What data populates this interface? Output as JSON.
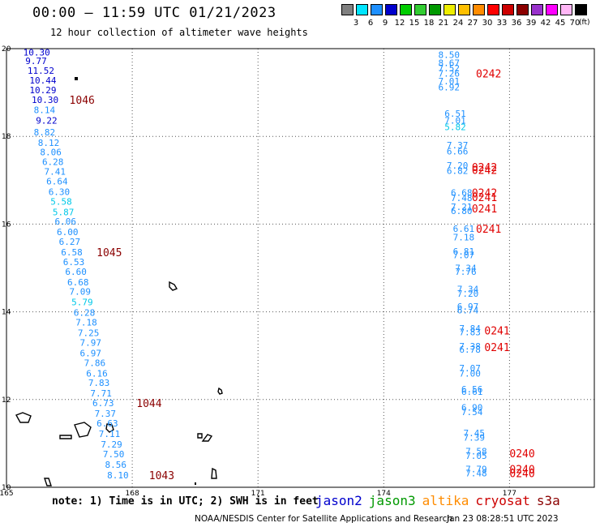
{
  "title": "00:00 – 11:59 UTC 01/21/2023",
  "subtitle": "12 hour collection of altimeter wave heights",
  "legend": {
    "unit": "(ft)",
    "bins": [
      {
        "label": "3",
        "color": "#808080"
      },
      {
        "label": "6",
        "color": "#00e5ff"
      },
      {
        "label": "9",
        "color": "#1e90ff"
      },
      {
        "label": "12",
        "color": "#0000cd"
      },
      {
        "label": "15",
        "color": "#00cd00"
      },
      {
        "label": "18",
        "color": "#32cd32"
      },
      {
        "label": "21",
        "color": "#009900"
      },
      {
        "label": "24",
        "color": "#eeee00"
      },
      {
        "label": "27",
        "color": "#ffc000"
      },
      {
        "label": "30",
        "color": "#ff8c00"
      },
      {
        "label": "33",
        "color": "#ff0000"
      },
      {
        "label": "36",
        "color": "#cc0000"
      },
      {
        "label": "39",
        "color": "#8b0000"
      },
      {
        "label": "42",
        "color": "#9932cc"
      },
      {
        "label": "45",
        "color": "#ff00ff"
      },
      {
        "label": "70",
        "color": "#ffb6f5"
      },
      {
        "label": "",
        "color": "#000000"
      }
    ]
  },
  "note": "note: 1) Time is in UTC; 2) SWH is in feet",
  "satellites": [
    {
      "name": "jason2",
      "color": "#0000cd"
    },
    {
      "name": "jason3",
      "color": "#009900"
    },
    {
      "name": "altika",
      "color": "#ff8c00"
    },
    {
      "name": "cryosat",
      "color": "#cc0000"
    },
    {
      "name": "s3a",
      "color": "#8b0000"
    }
  ],
  "credit": "NOAA/NESDIS Center for Satellite Applications and Research",
  "timestamp": "Jan 23 08:28:51 UTC 2023",
  "chart_data": {
    "type": "scatter",
    "title": "00:00 – 11:59 UTC 01/21/2023",
    "xlim": [
      165,
      178
    ],
    "ylim": [
      10,
      20
    ],
    "x_ticks": [
      "165",
      "168",
      "171",
      "174",
      "177"
    ],
    "y_ticks": [
      "10",
      "12",
      "14",
      "16",
      "18",
      "20"
    ],
    "grid": true,
    "series": [
      {
        "name": "track-west",
        "points": [
          {
            "x": 165.4,
            "y": 19.92,
            "v": "10.30",
            "color": "#0000cd"
          },
          {
            "x": 165.45,
            "y": 19.72,
            "v": "9.77",
            "color": "#0000cd"
          },
          {
            "x": 165.5,
            "y": 19.5,
            "v": "11.52",
            "color": "#0000cd"
          },
          {
            "x": 165.55,
            "y": 19.28,
            "v": "10.44",
            "color": "#0000cd"
          },
          {
            "x": 165.55,
            "y": 19.06,
            "v": "10.29",
            "color": "#0000cd"
          },
          {
            "x": 165.6,
            "y": 18.84,
            "v": "10.30",
            "color": "#0000cd"
          },
          {
            "x": 165.65,
            "y": 18.6,
            "v": "8.14",
            "color": "#1e90ff"
          },
          {
            "x": 165.7,
            "y": 18.36,
            "v": "9.22",
            "color": "#0000cd"
          },
          {
            "x": 165.65,
            "y": 18.1,
            "v": "8.82",
            "color": "#1e90ff"
          },
          {
            "x": 165.75,
            "y": 17.86,
            "v": "8.12",
            "color": "#1e90ff"
          },
          {
            "x": 165.8,
            "y": 17.64,
            "v": "8.06",
            "color": "#1e90ff"
          },
          {
            "x": 165.85,
            "y": 17.42,
            "v": "6.28",
            "color": "#1e90ff"
          },
          {
            "x": 165.9,
            "y": 17.2,
            "v": "7.41",
            "color": "#1e90ff"
          },
          {
            "x": 165.95,
            "y": 16.98,
            "v": "6.64",
            "color": "#1e90ff"
          },
          {
            "x": 166.0,
            "y": 16.74,
            "v": "6.30",
            "color": "#1e90ff"
          },
          {
            "x": 166.05,
            "y": 16.52,
            "v": "5.58",
            "color": "#00c8e8"
          },
          {
            "x": 166.1,
            "y": 16.28,
            "v": "5.87",
            "color": "#00c8e8"
          },
          {
            "x": 166.15,
            "y": 16.06,
            "v": "6.06",
            "color": "#1e90ff"
          },
          {
            "x": 166.2,
            "y": 15.82,
            "v": "6.00",
            "color": "#1e90ff"
          },
          {
            "x": 166.25,
            "y": 15.6,
            "v": "6.27",
            "color": "#1e90ff"
          },
          {
            "x": 166.3,
            "y": 15.36,
            "v": "6.58",
            "color": "#1e90ff"
          },
          {
            "x": 166.35,
            "y": 15.14,
            "v": "6.53",
            "color": "#1e90ff"
          },
          {
            "x": 166.4,
            "y": 14.92,
            "v": "6.60",
            "color": "#1e90ff"
          },
          {
            "x": 166.45,
            "y": 14.68,
            "v": "6.68",
            "color": "#1e90ff"
          },
          {
            "x": 166.5,
            "y": 14.46,
            "v": "7.09",
            "color": "#1e90ff"
          },
          {
            "x": 166.55,
            "y": 14.22,
            "v": "5.79",
            "color": "#00c8e8"
          },
          {
            "x": 166.6,
            "y": 13.98,
            "v": "6.28",
            "color": "#1e90ff"
          },
          {
            "x": 166.65,
            "y": 13.76,
            "v": "7.18",
            "color": "#1e90ff"
          },
          {
            "x": 166.7,
            "y": 13.52,
            "v": "7.25",
            "color": "#1e90ff"
          },
          {
            "x": 166.75,
            "y": 13.3,
            "v": "7.97",
            "color": "#1e90ff"
          },
          {
            "x": 166.75,
            "y": 13.06,
            "v": "6.97",
            "color": "#1e90ff"
          },
          {
            "x": 166.85,
            "y": 12.84,
            "v": "7.86",
            "color": "#1e90ff"
          },
          {
            "x": 166.9,
            "y": 12.6,
            "v": "6.16",
            "color": "#1e90ff"
          },
          {
            "x": 166.95,
            "y": 12.38,
            "v": "7.83",
            "color": "#1e90ff"
          },
          {
            "x": 167.0,
            "y": 12.14,
            "v": "7.71",
            "color": "#1e90ff"
          },
          {
            "x": 167.05,
            "y": 11.92,
            "v": "6.73",
            "color": "#1e90ff"
          },
          {
            "x": 167.1,
            "y": 11.68,
            "v": "7.37",
            "color": "#1e90ff"
          },
          {
            "x": 167.15,
            "y": 11.46,
            "v": "6.63",
            "color": "#1e90ff"
          },
          {
            "x": 167.2,
            "y": 11.22,
            "v": "7.11",
            "color": "#1e90ff"
          },
          {
            "x": 167.25,
            "y": 10.98,
            "v": "7.29",
            "color": "#1e90ff"
          },
          {
            "x": 167.3,
            "y": 10.76,
            "v": "7.50",
            "color": "#1e90ff"
          },
          {
            "x": 167.35,
            "y": 10.52,
            "v": "8.56",
            "color": "#1e90ff"
          },
          {
            "x": 167.4,
            "y": 10.28,
            "v": "8.10",
            "color": "#1e90ff"
          }
        ]
      },
      {
        "name": "track-east",
        "points": [
          {
            "x": 175.3,
            "y": 19.86,
            "v": "8.50",
            "color": "#1e90ff"
          },
          {
            "x": 175.3,
            "y": 19.68,
            "v": "8.67",
            "color": "#1e90ff"
          },
          {
            "x": 175.3,
            "y": 19.56,
            "v": "7.52",
            "color": "#1e90ff"
          },
          {
            "x": 175.3,
            "y": 19.44,
            "v": "7.26",
            "color": "#1e90ff"
          },
          {
            "x": 175.3,
            "y": 19.26,
            "v": "7.01",
            "color": "#1e90ff"
          },
          {
            "x": 175.3,
            "y": 19.12,
            "v": "6.92",
            "color": "#1e90ff"
          },
          {
            "x": 175.45,
            "y": 18.52,
            "v": "6.51",
            "color": "#1e90ff"
          },
          {
            "x": 175.45,
            "y": 18.36,
            "v": "7.01",
            "color": "#1e90ff"
          },
          {
            "x": 175.45,
            "y": 18.22,
            "v": "5.82",
            "color": "#00c8e8"
          },
          {
            "x": 175.5,
            "y": 17.8,
            "v": "7.37",
            "color": "#1e90ff"
          },
          {
            "x": 175.5,
            "y": 17.66,
            "v": "6.66",
            "color": "#1e90ff"
          },
          {
            "x": 175.5,
            "y": 17.34,
            "v": "7.20",
            "color": "#1e90ff"
          },
          {
            "x": 175.5,
            "y": 17.22,
            "v": "6.82",
            "color": "#1e90ff"
          },
          {
            "x": 175.6,
            "y": 16.72,
            "v": "6.68",
            "color": "#1e90ff"
          },
          {
            "x": 175.6,
            "y": 16.6,
            "v": "7.48",
            "color": "#1e90ff"
          },
          {
            "x": 175.6,
            "y": 16.4,
            "v": "7.21",
            "color": "#1e90ff"
          },
          {
            "x": 175.6,
            "y": 16.3,
            "v": "6.80",
            "color": "#1e90ff"
          },
          {
            "x": 175.65,
            "y": 15.9,
            "v": "6.61",
            "color": "#1e90ff"
          },
          {
            "x": 175.65,
            "y": 15.7,
            "v": "7.18",
            "color": "#1e90ff"
          },
          {
            "x": 175.65,
            "y": 15.38,
            "v": "6.81",
            "color": "#1e90ff"
          },
          {
            "x": 175.65,
            "y": 15.3,
            "v": "7.07",
            "color": "#1e90ff"
          },
          {
            "x": 175.7,
            "y": 15.0,
            "v": "7.34",
            "color": "#1e90ff"
          },
          {
            "x": 175.7,
            "y": 14.92,
            "v": "7.76",
            "color": "#1e90ff"
          },
          {
            "x": 175.75,
            "y": 14.52,
            "v": "7.34",
            "color": "#1e90ff"
          },
          {
            "x": 175.75,
            "y": 14.42,
            "v": "7.20",
            "color": "#1e90ff"
          },
          {
            "x": 175.75,
            "y": 14.12,
            "v": "6.97",
            "color": "#1e90ff"
          },
          {
            "x": 175.75,
            "y": 14.04,
            "v": "6.74",
            "color": "#1e90ff"
          },
          {
            "x": 175.8,
            "y": 13.62,
            "v": "7.84",
            "color": "#1e90ff"
          },
          {
            "x": 175.8,
            "y": 13.54,
            "v": "7.83",
            "color": "#1e90ff"
          },
          {
            "x": 175.8,
            "y": 13.22,
            "v": "7.38",
            "color": "#1e90ff"
          },
          {
            "x": 175.8,
            "y": 13.14,
            "v": "6.78",
            "color": "#1e90ff"
          },
          {
            "x": 175.8,
            "y": 12.72,
            "v": "7.07",
            "color": "#1e90ff"
          },
          {
            "x": 175.8,
            "y": 12.6,
            "v": "7.00",
            "color": "#1e90ff"
          },
          {
            "x": 175.85,
            "y": 12.24,
            "v": "6.56",
            "color": "#1e90ff"
          },
          {
            "x": 175.85,
            "y": 12.18,
            "v": "6.61",
            "color": "#1e90ff"
          },
          {
            "x": 175.85,
            "y": 11.82,
            "v": "6.90",
            "color": "#1e90ff"
          },
          {
            "x": 175.85,
            "y": 11.72,
            "v": "7.54",
            "color": "#1e90ff"
          },
          {
            "x": 175.9,
            "y": 11.24,
            "v": "7.45",
            "color": "#1e90ff"
          },
          {
            "x": 175.9,
            "y": 11.14,
            "v": "7.39",
            "color": "#1e90ff"
          },
          {
            "x": 175.95,
            "y": 10.82,
            "v": "7.58",
            "color": "#1e90ff"
          },
          {
            "x": 175.95,
            "y": 10.72,
            "v": "7.05",
            "color": "#1e90ff"
          },
          {
            "x": 175.95,
            "y": 10.42,
            "v": "7.79",
            "color": "#1e90ff"
          },
          {
            "x": 175.95,
            "y": 10.32,
            "v": "7.48",
            "color": "#1e90ff"
          }
        ]
      }
    ],
    "pass_labels": [
      {
        "text": "1046",
        "x": 166.5,
        "y": 18.84,
        "color": "#8b0000"
      },
      {
        "text": "1045",
        "x": 167.15,
        "y": 15.36,
        "color": "#8b0000"
      },
      {
        "text": "1044",
        "x": 168.1,
        "y": 11.92,
        "color": "#8b0000"
      },
      {
        "text": "1043",
        "x": 168.4,
        "y": 10.28,
        "color": "#8b0000"
      },
      {
        "text": "0242",
        "x": 176.2,
        "y": 19.44,
        "color": "#e00000"
      },
      {
        "text": "0242",
        "x": 176.1,
        "y": 17.3,
        "color": "#e00000"
      },
      {
        "text": "0242",
        "x": 176.1,
        "y": 17.24,
        "color": "#e00000"
      },
      {
        "text": "0242",
        "x": 176.1,
        "y": 16.72,
        "color": "#e00000"
      },
      {
        "text": "0241",
        "x": 176.1,
        "y": 16.62,
        "color": "#e00000"
      },
      {
        "text": "0241",
        "x": 176.1,
        "y": 16.36,
        "color": "#e00000"
      },
      {
        "text": "0241",
        "x": 176.2,
        "y": 15.9,
        "color": "#e00000"
      },
      {
        "text": "0241",
        "x": 176.4,
        "y": 13.58,
        "color": "#e00000"
      },
      {
        "text": "0241",
        "x": 176.4,
        "y": 13.2,
        "color": "#e00000"
      },
      {
        "text": "0240",
        "x": 177.0,
        "y": 10.78,
        "color": "#e00000"
      },
      {
        "text": "0240",
        "x": 177.0,
        "y": 10.42,
        "color": "#e00000"
      },
      {
        "text": "0240",
        "x": 177.0,
        "y": 10.32,
        "color": "#e00000"
      }
    ]
  }
}
